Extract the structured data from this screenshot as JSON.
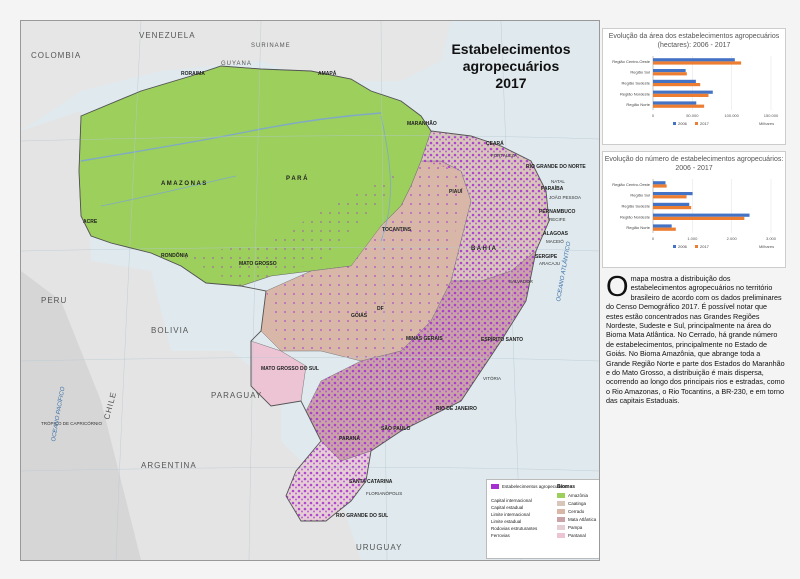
{
  "map": {
    "title_line1": "Estabelecimentos",
    "title_line2": "agropecuários",
    "title_line3": "2017",
    "countries": {
      "venezuela": "VENEZUELA",
      "colombia": "COLOMBIA",
      "suriname": "SURINAME",
      "guyana": "GUYANA",
      "peru": "PERU",
      "bolivia": "BOLIVIA",
      "paraguay": "PARAGUAY",
      "argentina": "ARGENTINA",
      "chile": "CHILE",
      "uruguay": "URUGUAY"
    },
    "states": {
      "amazonas": "A M A Z O N A S",
      "para": "P A R Á",
      "roraima": "RORAIMA",
      "amapa": "AMAPÁ",
      "acre": "ACRE",
      "rondonia": "RONDÔNIA",
      "mato_grosso": "MATO GROSSO",
      "tocantins": "TOCANTINS",
      "maranhao": "MARANHÃO",
      "piaui": "PIAUÍ",
      "ceara": "CEARÁ",
      "rio_grande_do_norte": "RIO GRANDE DO NORTE",
      "paraiba": "PARAÍBA",
      "pernambuco": "PERNAMBUCO",
      "alagoas": "ALAGOAS",
      "sergipe": "SERGIPE",
      "bahia": "B A H I A",
      "goias": "GOIÁS",
      "df": "DF",
      "minas_gerais": "MINAS GERAIS",
      "espirito_santo": "ESPÍRITO SANTO",
      "mato_grosso_do_sul": "MATO GROSSO DO SUL",
      "sao_paulo": "SÃO PAULO",
      "rio_de_janeiro": "RIO DE JANEIRO",
      "parana": "PARANÁ",
      "santa_catarina": "SANTA CATARINA",
      "rio_grande_do_sul": "RIO GRANDE DO SUL"
    },
    "oceans": {
      "atlantico": "OCEANO ATLÂNTICO",
      "pacifico": "OCEANO PACÍFICO"
    },
    "cities": {
      "fortaleza": "FORTALEZA",
      "natal": "NATAL",
      "joao_pessoa": "JOÃO PESSOA",
      "recife": "RECIFE",
      "maceio": "MACEIÓ",
      "aracaju": "ARACAJU",
      "salvador": "SALVADOR",
      "vitoria": "VITÓRIA",
      "florianopolis": "FLORIANÓPOLIS",
      "tropic_capricorn": "TRÓPICO DE CAPRICÓRNIO"
    },
    "colors": {
      "amazonia": "#9ccf5c",
      "cerrado": "#d8b7a9",
      "caatinga": "#d9c6ba",
      "mata_atlantica": "#c9a3a8",
      "pampa": "#e5cfd4",
      "pantanal": "#ecc4d4",
      "establishments": "#a52fd0",
      "land_outside": "#eaeaea",
      "water": "#dfe9ee"
    }
  },
  "legend": {
    "establishments": "Estabelecimentos agropecuários",
    "biomes_title": "Biomas",
    "items_left": [
      "Capital internacional",
      "Capital estadual",
      "Limite internacional",
      "Limite estadual",
      "Rodovias estruturantes",
      "Ferrovias"
    ],
    "biomes": [
      "Amazônia",
      "Caatinga",
      "Cerrado",
      "Mata Atlântica",
      "Pampa",
      "Pantanal"
    ]
  },
  "chart_data": [
    {
      "type": "bar",
      "title": "Evolução da área dos estabelecimentos agropecuários (hectares): 2006 - 2017",
      "categories": [
        "Região Centro-Oeste",
        "Região Sul",
        "Região Sudeste",
        "Região Nordeste",
        "Região Norte"
      ],
      "series": [
        {
          "name": "2006",
          "values": [
            104000,
            41500,
            54500,
            76000,
            55000
          ]
        },
        {
          "name": "2017",
          "values": [
            112000,
            43000,
            60000,
            70500,
            65000
          ]
        }
      ],
      "xticks": [
        "0",
        "50.000",
        "100.000",
        "150.000"
      ],
      "xlim": [
        0,
        150000
      ],
      "xlabel": "Milhares",
      "colors": {
        "2006": "#4472c4",
        "2017": "#ed7d31"
      }
    },
    {
      "type": "bar",
      "title": "Evolução do número de estabelecimentos agropecuários: 2006 - 2017",
      "categories": [
        "Região Centro-Oeste",
        "Região Sul",
        "Região Sudeste",
        "Região Nordeste",
        "Região Norte"
      ],
      "series": [
        {
          "name": "2006",
          "values": [
            317,
            1007,
            922,
            2454,
            475
          ]
        },
        {
          "name": "2017",
          "values": [
            347,
            853,
            970,
            2322,
            580
          ]
        }
      ],
      "xticks": [
        "0",
        "1.000",
        "2.000",
        "3.000"
      ],
      "xlim": [
        0,
        3000
      ],
      "xlabel": "Milhares",
      "colors": {
        "2006": "#4472c4",
        "2017": "#ed7d31"
      }
    }
  ],
  "description": {
    "dropcap": "O",
    "text": "mapa mostra a distribuição dos estabelecimentos agropecuários no território brasileiro de acordo com os dados preliminares do Censo Demográfico 2017. É possível notar que estes estão concentrados nas Grandes Regiões Nordeste, Sudeste e Sul, principalmente na área do Bioma Mata Atlântica. No Cerrado, há grande número de estabelecimentos, principalmente no Estado de Goiás. No Bioma Amazônia, que abrange toda a Grande Região Norte e parte dos Estados do Maranhão e do Mato Grosso, a distribuição é mais dispersa, ocorrendo ao longo dos principais rios e estradas, como o Rio Amazonas, o Rio Tocantins, a BR-230, e em torno das capitais Estaduais."
  }
}
